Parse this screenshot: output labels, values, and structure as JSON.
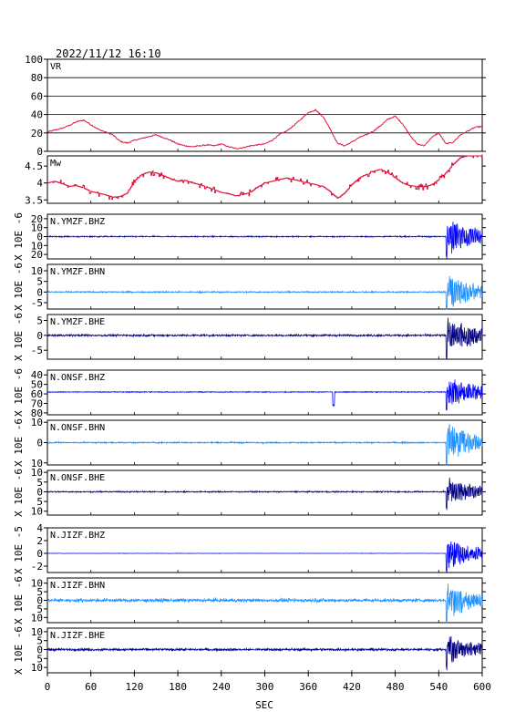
{
  "chart_data": {
    "type": "line",
    "title": "2022/11/12 16:10",
    "xlabel": "SEC",
    "xlim": [
      0,
      600
    ],
    "xticks": [
      0,
      60,
      120,
      180,
      240,
      300,
      360,
      420,
      480,
      540,
      600
    ],
    "event_onset_sec": 550,
    "panels": [
      {
        "label": "VR",
        "kind": "vr",
        "color": "#dc143c",
        "ylim": [
          0,
          100
        ],
        "yticks": [
          0,
          20,
          40,
          60,
          80,
          100
        ],
        "grid_y": [
          20,
          40,
          60,
          80
        ],
        "ylabel": "",
        "x": [
          0,
          10,
          20,
          30,
          40,
          50,
          60,
          70,
          80,
          90,
          100,
          110,
          120,
          130,
          140,
          150,
          160,
          170,
          180,
          190,
          200,
          210,
          220,
          230,
          240,
          250,
          260,
          270,
          280,
          290,
          300,
          310,
          320,
          330,
          340,
          350,
          360,
          370,
          380,
          390,
          400,
          410,
          420,
          430,
          440,
          450,
          460,
          470,
          480,
          490,
          500,
          510,
          520,
          530,
          540,
          550,
          560,
          570,
          580,
          590,
          600
        ],
        "values": [
          21,
          23,
          25,
          28,
          32,
          34,
          29,
          24,
          21,
          18,
          11,
          9,
          12,
          14,
          16,
          18,
          15,
          12,
          8,
          6,
          5,
          6,
          7,
          6,
          8,
          5,
          3,
          4,
          6,
          7,
          8,
          12,
          18,
          22,
          28,
          35,
          42,
          45,
          38,
          25,
          9,
          6,
          10,
          15,
          18,
          22,
          28,
          35,
          38,
          30,
          18,
          8,
          6,
          15,
          20,
          8,
          10,
          18,
          22,
          26,
          27
        ]
      },
      {
        "label": "Mw",
        "kind": "mw",
        "color": "#dc143c",
        "ylim": [
          3.4,
          4.8
        ],
        "yticks": [
          3.5,
          4.0,
          4.5
        ],
        "ylabel": "",
        "x": [
          0,
          10,
          20,
          30,
          40,
          50,
          60,
          70,
          80,
          90,
          100,
          110,
          120,
          130,
          140,
          150,
          160,
          170,
          180,
          190,
          200,
          210,
          220,
          230,
          240,
          250,
          260,
          270,
          280,
          290,
          300,
          310,
          320,
          330,
          340,
          350,
          360,
          370,
          380,
          390,
          400,
          410,
          420,
          430,
          440,
          450,
          460,
          470,
          480,
          490,
          500,
          510,
          520,
          530,
          540,
          550,
          560,
          570,
          580,
          590,
          600
        ],
        "values": [
          4.0,
          4.05,
          3.98,
          3.9,
          3.92,
          3.85,
          3.75,
          3.7,
          3.65,
          3.58,
          3.6,
          3.7,
          4.05,
          4.25,
          4.32,
          4.3,
          4.22,
          4.12,
          4.05,
          4.08,
          4.0,
          3.95,
          3.88,
          3.8,
          3.72,
          3.68,
          3.62,
          3.66,
          3.72,
          3.88,
          4.0,
          4.05,
          4.1,
          4.15,
          4.1,
          4.05,
          4.0,
          3.95,
          3.9,
          3.75,
          3.55,
          3.7,
          3.95,
          4.15,
          4.25,
          4.35,
          4.4,
          4.3,
          4.15,
          4.0,
          3.92,
          3.9,
          3.88,
          3.95,
          4.1,
          4.3,
          4.55,
          4.75,
          4.8,
          4.82,
          4.85
        ]
      },
      {
        "label": "N.YMZF.BHZ",
        "kind": "wave",
        "color": "#0000ff",
        "ylim": [
          -25,
          25
        ],
        "yticks": [
          -20,
          -10,
          0,
          10,
          20
        ],
        "ytick_labels": [
          "20",
          "10",
          "0",
          "10",
          "20"
        ],
        "ylabel": "X 10E -6",
        "noise": 0.6,
        "burst": 22
      },
      {
        "label": "N.YMZF.BHN",
        "kind": "wave",
        "color": "#1e90ff",
        "ylim": [
          -8,
          13
        ],
        "yticks": [
          -5,
          0,
          5,
          10
        ],
        "ytick_labels": [
          "-5",
          "0",
          "5",
          "10"
        ],
        "ylabel": "X 10E -6",
        "noise": 0.3,
        "burst": 9
      },
      {
        "label": "N.YMZF.BHE",
        "kind": "wave",
        "color": "#000080",
        "ylim": [
          -8,
          7
        ],
        "yticks": [
          -5,
          0,
          5
        ],
        "ytick_labels": [
          "-5",
          "0",
          "5"
        ],
        "ylabel": "X 10E -6",
        "noise": 0.3,
        "burst": 7
      },
      {
        "label": "N.ONSF.BHZ",
        "kind": "wave",
        "color": "#0000ff",
        "ylim": [
          -82,
          -35
        ],
        "yticks": [
          -80,
          -70,
          -60,
          -50,
          -40
        ],
        "ytick_labels": [
          "80",
          "70",
          "60",
          "50",
          "40"
        ],
        "ylabel": "X 10E -6",
        "noise": 0.4,
        "burst": 18,
        "baseline": -58,
        "blip_at": 395
      },
      {
        "label": "N.ONSF.BHN",
        "kind": "wave",
        "color": "#1e90ff",
        "ylim": [
          -11,
          11
        ],
        "yticks": [
          -10,
          0,
          10
        ],
        "ytick_labels": [
          "10",
          "0",
          "10"
        ],
        "ylabel": "X 10E -6",
        "noise": 0.3,
        "burst": 10
      },
      {
        "label": "N.ONSF.BHE",
        "kind": "wave",
        "color": "#000080",
        "ylim": [
          -12,
          11
        ],
        "yticks": [
          -10,
          -5,
          0,
          5,
          10
        ],
        "ytick_labels": [
          "10",
          "5",
          "0",
          "5",
          "10"
        ],
        "ylabel": "X 10E -6",
        "noise": 0.3,
        "burst": 8
      },
      {
        "label": "N.JIZF.BHZ",
        "kind": "wave",
        "color": "#0000ff",
        "ylim": [
          -3,
          4
        ],
        "yticks": [
          -2,
          0,
          2,
          4
        ],
        "ytick_labels": [
          "-2",
          "0",
          "2",
          "4"
        ],
        "ylabel": "X 10E -5",
        "noise": 0.02,
        "burst": 2.6
      },
      {
        "label": "N.JIZF.BHN",
        "kind": "wave",
        "color": "#1e90ff",
        "ylim": [
          -13,
          13
        ],
        "yticks": [
          -10,
          -5,
          0,
          5,
          10
        ],
        "ytick_labels": [
          "10",
          "5",
          "0",
          "5",
          "10"
        ],
        "ylabel": "X 10E -6",
        "noise": 0.9,
        "burst": 11
      },
      {
        "label": "N.JIZF.BHE",
        "kind": "wave",
        "color": "#000080",
        "ylim": [
          -13,
          12
        ],
        "yticks": [
          -10,
          -5,
          0,
          5,
          10
        ],
        "ytick_labels": [
          "10",
          "5",
          "0",
          "5",
          "10"
        ],
        "ylabel": "X 10E -6",
        "noise": 0.6,
        "burst": 9
      }
    ]
  }
}
